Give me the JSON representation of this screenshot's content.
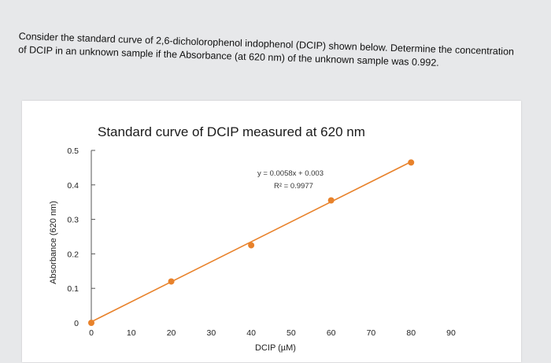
{
  "question": {
    "text": "Consider the standard curve of 2,6-dicholorophenol indophenol (DCIP) shown below. Determine the concentration of DCIP in an unknown sample if the Absorbance (at 620 nm) of the unknown sample was 0.992."
  },
  "chart_data": {
    "type": "scatter",
    "title": "Standard curve of DCIP measured at 620 nm",
    "xlabel": "DCIP (µM)",
    "ylabel": "Absorbance (620 nm)",
    "xlim": [
      0,
      90
    ],
    "ylim": [
      0,
      0.5
    ],
    "x_ticks": [
      "0",
      "10",
      "20",
      "30",
      "40",
      "50",
      "60",
      "70",
      "80",
      "90"
    ],
    "y_ticks": [
      "0",
      "0.1",
      "0.2",
      "0.3",
      "0.4",
      "0.5"
    ],
    "grid": false,
    "series": [
      {
        "x": [
          0,
          20,
          40,
          60,
          80
        ],
        "y": [
          0.0,
          0.12,
          0.225,
          0.355,
          0.465
        ]
      }
    ],
    "trendline": {
      "slope": 0.0058,
      "intercept": 0.003,
      "equation": "y = 0.0058x + 0.003",
      "r2": "R² = 0.9977"
    },
    "colors": {
      "points": "#e8822b",
      "line": "#e8822b",
      "axis": "#555555"
    }
  }
}
